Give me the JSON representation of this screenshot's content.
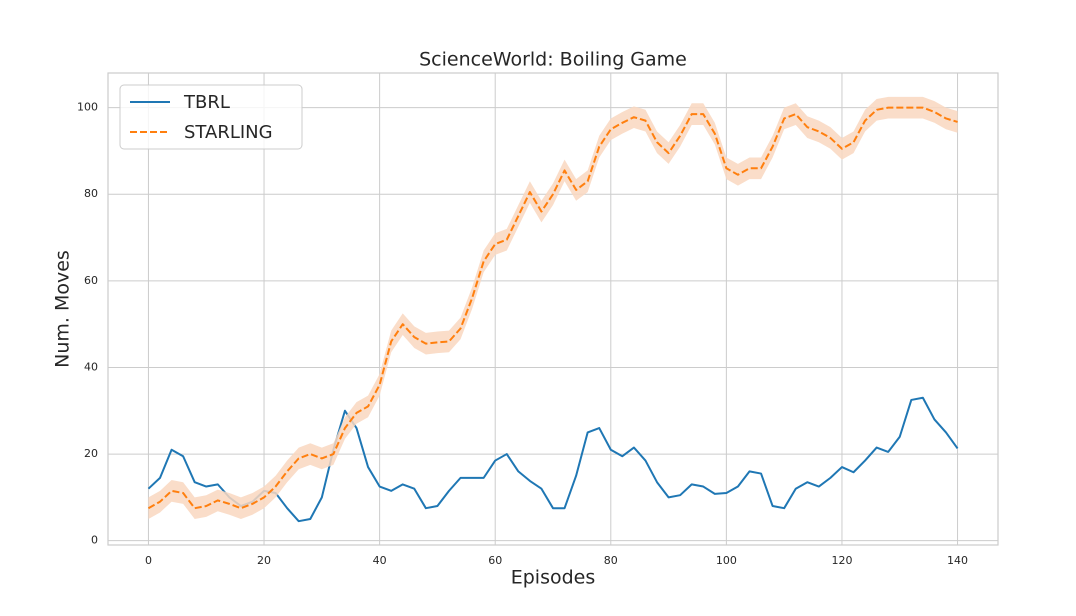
{
  "chart_data": {
    "type": "line",
    "title": "ScienceWorld: Boiling Game",
    "xlabel": "Episodes",
    "ylabel": "Num. Moves",
    "x": [
      0,
      2,
      4,
      6,
      8,
      10,
      12,
      14,
      16,
      18,
      20,
      22,
      24,
      26,
      28,
      30,
      32,
      34,
      36,
      38,
      40,
      42,
      44,
      46,
      48,
      50,
      52,
      54,
      56,
      58,
      60,
      62,
      64,
      66,
      68,
      70,
      72,
      74,
      76,
      78,
      80,
      82,
      84,
      86,
      88,
      90,
      92,
      94,
      96,
      98,
      100,
      102,
      104,
      106,
      108,
      110,
      112,
      114,
      116,
      118,
      120,
      122,
      124,
      126,
      128,
      130,
      132,
      134,
      136,
      138,
      140
    ],
    "series": [
      {
        "name": "TBRL",
        "color": "#1f77b4",
        "dash": false,
        "values": [
          12,
          14.5,
          21,
          19.5,
          13.5,
          12.5,
          13,
          10,
          8,
          9,
          11.5,
          11,
          7.5,
          4.5,
          5,
          10,
          21,
          30,
          26,
          17,
          12.5,
          11.5,
          13,
          12,
          7.5,
          8,
          11.5,
          14.5,
          14.5,
          14.5,
          18.5,
          20,
          16,
          13.8,
          12,
          7.5,
          7.5,
          15,
          25,
          26,
          21,
          19.5,
          21.5,
          18.5,
          13.5,
          10,
          10.5,
          13,
          12.5,
          10.8,
          11,
          12.5,
          16,
          15.5,
          8,
          7.5,
          12,
          13.5,
          12.5,
          14.5,
          17,
          15.8,
          18.5,
          21.5,
          20.5,
          24,
          32.5,
          33,
          28,
          25,
          21.3
        ]
      },
      {
        "name": "STARLING",
        "color": "#ff7f0e",
        "dash": true,
        "band_color": "#f9d7c0",
        "values": [
          7.5,
          9,
          11.5,
          11,
          7.5,
          8,
          9.3,
          8.5,
          7.5,
          8.5,
          10,
          12.5,
          16,
          19,
          20,
          19,
          20,
          26,
          29.5,
          31,
          36,
          46,
          50,
          47,
          45.5,
          45.8,
          46,
          49,
          56,
          64.5,
          68.5,
          69.5,
          75,
          80.5,
          76,
          80,
          85.5,
          81,
          83,
          91,
          95,
          96.5,
          97.8,
          97,
          92,
          89.5,
          93.5,
          98.5,
          98.5,
          94,
          86,
          84.5,
          86,
          86,
          91,
          97.5,
          98.5,
          95.5,
          94.5,
          93,
          90.5,
          92,
          97,
          99.5,
          100,
          100,
          100,
          100,
          99,
          97.5,
          96.7
        ],
        "lower": [
          5,
          6.5,
          9,
          8.5,
          5,
          5.5,
          6.8,
          6,
          5,
          6,
          7.5,
          10,
          13.5,
          16.5,
          17.5,
          16.5,
          17.5,
          23.5,
          27,
          28.5,
          33.5,
          43.5,
          47.5,
          44.5,
          43,
          43.3,
          43.5,
          46.5,
          53.5,
          62,
          66,
          67,
          72.5,
          78,
          73.5,
          77.5,
          83,
          78.5,
          80.5,
          88.5,
          92.5,
          94,
          95.3,
          94.5,
          89.5,
          87,
          91,
          96,
          96,
          91.5,
          83.5,
          82,
          83.5,
          83.5,
          88.5,
          95,
          96,
          93,
          92,
          90.5,
          88,
          89.5,
          94.5,
          97,
          97.5,
          97.5,
          97.5,
          97.5,
          96.5,
          95,
          94.2
        ],
        "upper": [
          10,
          11.5,
          14,
          13.5,
          10,
          10.5,
          11.8,
          11,
          10,
          11,
          12.5,
          15,
          18.5,
          21.5,
          22.5,
          21.5,
          22.5,
          28.5,
          32,
          33.5,
          38.5,
          48.5,
          52.5,
          49.5,
          48,
          48.3,
          48.5,
          51.5,
          58.5,
          67,
          71,
          72,
          77.5,
          83,
          78.5,
          82.5,
          88,
          83.5,
          85.5,
          93.5,
          97.5,
          99,
          100.3,
          99.5,
          94.5,
          92,
          96,
          101,
          101,
          96.5,
          88.5,
          87,
          88.5,
          88.5,
          93.5,
          100,
          101,
          98,
          97,
          95.5,
          93,
          94.5,
          99.5,
          102,
          102.5,
          102.5,
          102.5,
          102.5,
          101.5,
          100,
          99.2
        ]
      }
    ],
    "xlim": [
      -7,
      147
    ],
    "ylim": [
      -1,
      108
    ],
    "xticks": [
      0,
      20,
      40,
      60,
      80,
      100,
      120,
      140
    ],
    "yticks": [
      0,
      20,
      40,
      60,
      80,
      100
    ],
    "grid": true,
    "legend": "upper left"
  }
}
